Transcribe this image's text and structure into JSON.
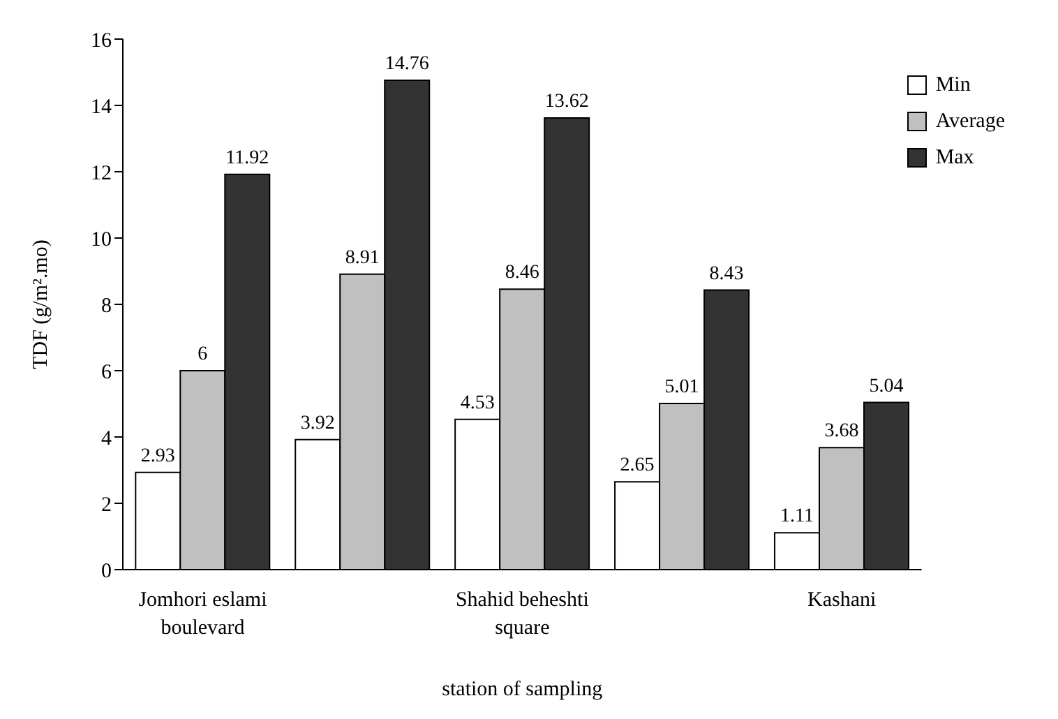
{
  "chart_data": {
    "type": "bar",
    "xlabel": "station of sampling",
    "ylabel": "TDF (g/m².mo)",
    "categories": [
      "Jomhori eslami boulevard",
      null,
      "Shahid beheshti square",
      null,
      "Kashani"
    ],
    "series": [
      {
        "name": "Min",
        "color": "#ffffff",
        "values": [
          2.93,
          3.92,
          4.53,
          2.65,
          1.11
        ]
      },
      {
        "name": "Average",
        "color": "#c0c0c0",
        "values": [
          6,
          8.91,
          8.46,
          5.01,
          3.68
        ]
      },
      {
        "name": "Max",
        "color": "#333333",
        "values": [
          11.92,
          14.76,
          13.62,
          8.43,
          5.04
        ]
      }
    ],
    "ylim": [
      0,
      16
    ],
    "yticks": [
      0,
      2,
      4,
      6,
      8,
      10,
      12,
      14,
      16
    ],
    "data_labels": true,
    "legend": "top right"
  }
}
